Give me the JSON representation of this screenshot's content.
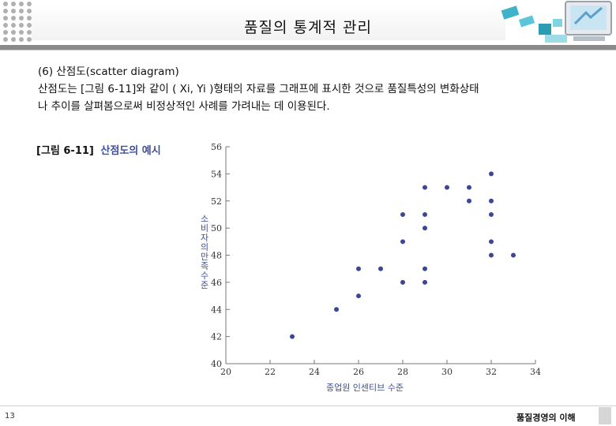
{
  "header": {
    "title": "품질의 통계적 관리"
  },
  "content": {
    "section_heading": "(6) 산점도(scatter diagram)",
    "body_line_1": "산점도는 [그림 6-11]와 같이 ( Xi, Yi )형태의 자료를 그래프에 표시한 것으로 품질특성의 변화상태",
    "body_line_2": "나 추이를 살펴봄으로써 비정상적인 사례를 가려내는 데 이용된다."
  },
  "figure": {
    "number": "[그림 6-11]",
    "name": "산점도의 예시"
  },
  "chart_data": {
    "type": "scatter",
    "title": "",
    "xlabel": "종업원 인센티브 수준",
    "ylabel": "소비자의 만족수준",
    "xlim": [
      20,
      34
    ],
    "ylim": [
      40,
      56
    ],
    "xticks": [
      20,
      22,
      24,
      26,
      28,
      30,
      32,
      34
    ],
    "yticks": [
      40,
      42,
      44,
      46,
      48,
      50,
      52,
      54,
      56
    ],
    "grid": false,
    "point_color": "#3b4694",
    "points": [
      {
        "x": 23,
        "y": 42
      },
      {
        "x": 25,
        "y": 44
      },
      {
        "x": 26,
        "y": 45
      },
      {
        "x": 26,
        "y": 47
      },
      {
        "x": 27,
        "y": 47
      },
      {
        "x": 28,
        "y": 46
      },
      {
        "x": 28,
        "y": 49
      },
      {
        "x": 28,
        "y": 51
      },
      {
        "x": 29,
        "y": 46
      },
      {
        "x": 29,
        "y": 47
      },
      {
        "x": 29,
        "y": 50
      },
      {
        "x": 29,
        "y": 51
      },
      {
        "x": 29,
        "y": 53
      },
      {
        "x": 30,
        "y": 53
      },
      {
        "x": 31,
        "y": 52
      },
      {
        "x": 31,
        "y": 53
      },
      {
        "x": 32,
        "y": 48
      },
      {
        "x": 32,
        "y": 49
      },
      {
        "x": 32,
        "y": 51
      },
      {
        "x": 32,
        "y": 52
      },
      {
        "x": 32,
        "y": 54
      },
      {
        "x": 33,
        "y": 48
      }
    ]
  },
  "footer": {
    "page_number": "13",
    "text": "품질경영의 이해"
  }
}
